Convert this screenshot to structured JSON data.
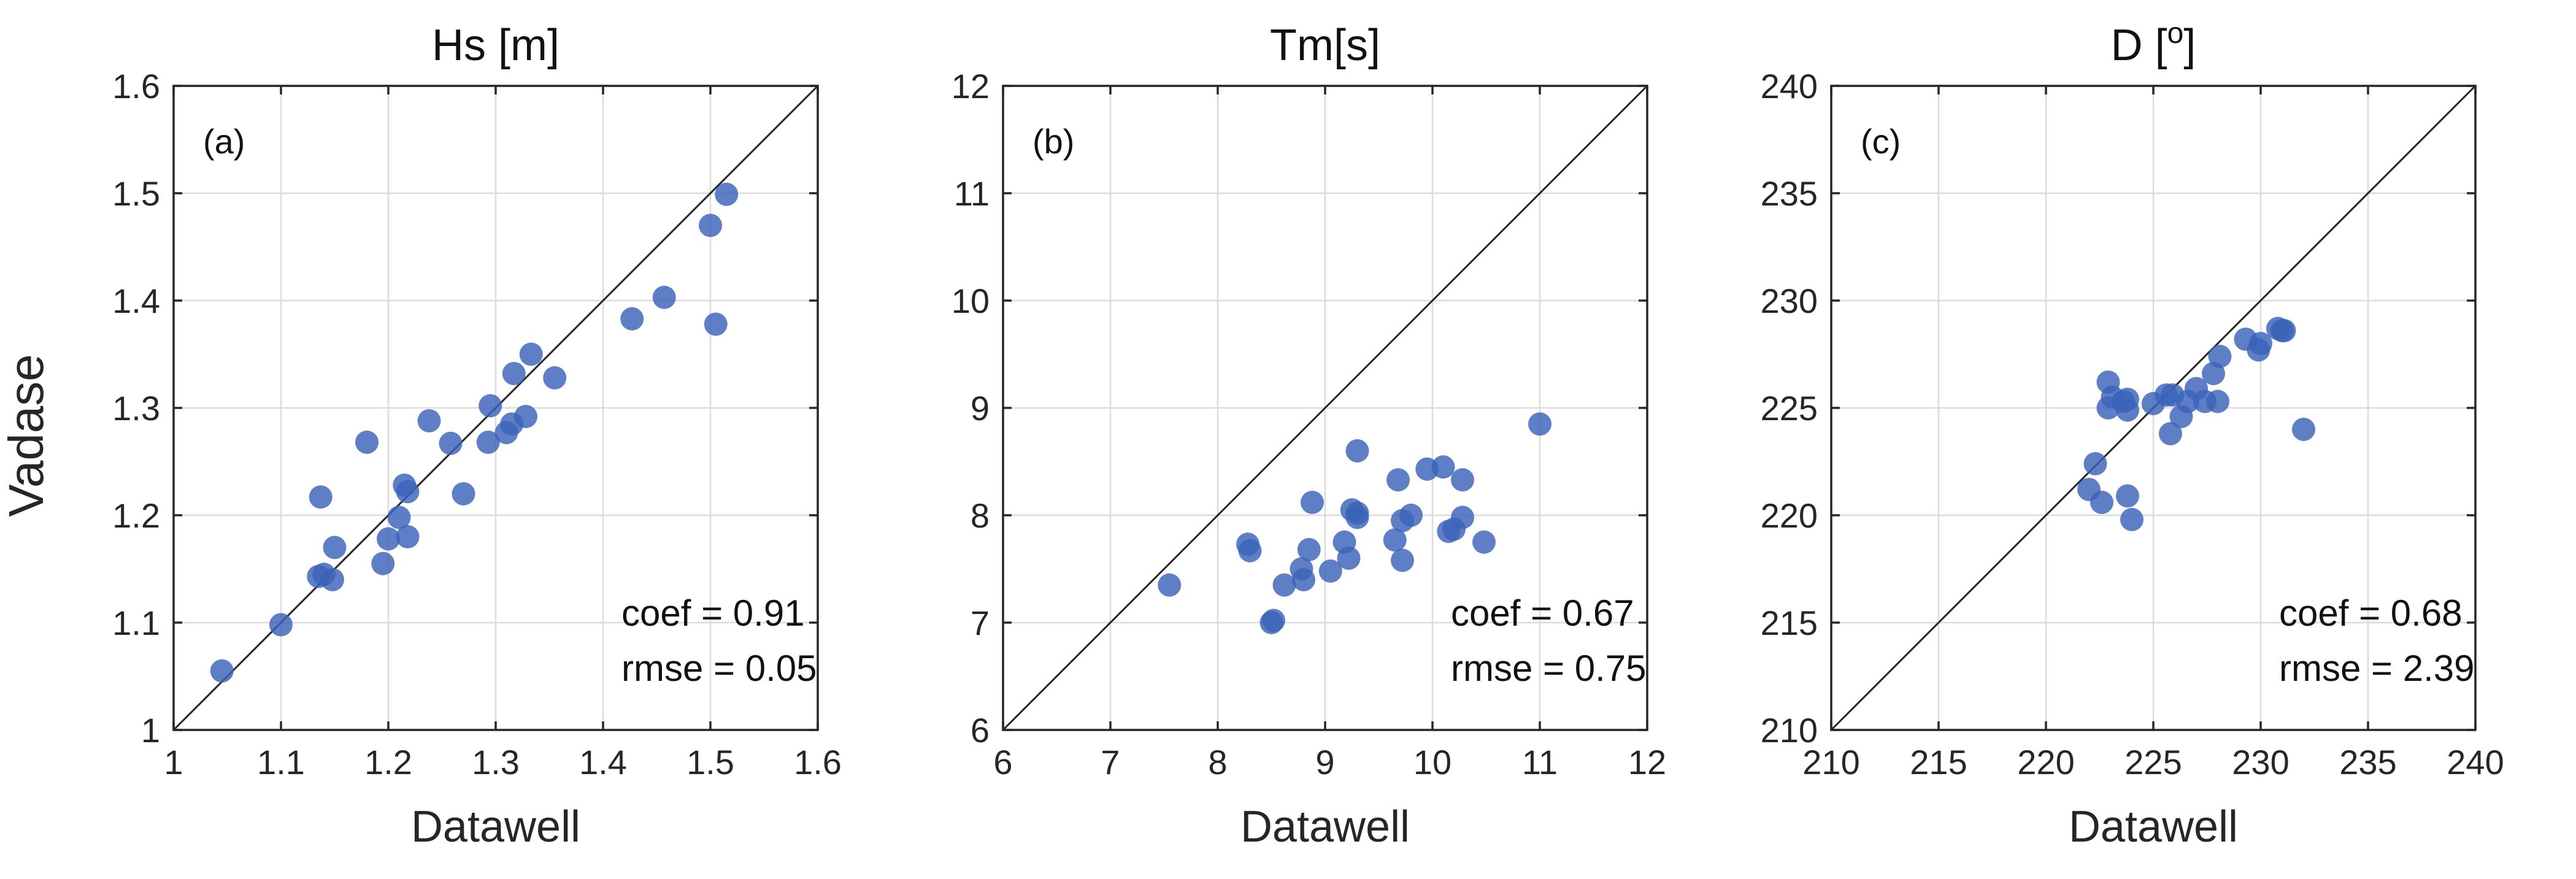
{
  "figure": {
    "ylabel": "Vadase",
    "accent_color": "#3a63b8"
  },
  "chart_data": [
    {
      "type": "scatter",
      "title": "Hs [m]",
      "panel_label": "(a)",
      "xlabel": "Datawell",
      "xlim": [
        1,
        1.6
      ],
      "ylim": [
        1,
        1.6
      ],
      "xticks": [
        "1",
        "1.1",
        "1.2",
        "1.3",
        "1.4",
        "1.5",
        "1.6"
      ],
      "yticks": [
        "1",
        "1.1",
        "1.2",
        "1.3",
        "1.4",
        "1.5",
        "1.6"
      ],
      "tick_values": [
        1,
        1.1,
        1.2,
        1.3,
        1.4,
        1.5,
        1.6
      ],
      "identity_line": true,
      "coef_text": "coef  = 0.91",
      "rmse_text": "rmse = 0.05",
      "points": [
        [
          1.045,
          1.055
        ],
        [
          1.1,
          1.098
        ],
        [
          1.135,
          1.143
        ],
        [
          1.14,
          1.145
        ],
        [
          1.148,
          1.14
        ],
        [
          1.15,
          1.17
        ],
        [
          1.137,
          1.217
        ],
        [
          1.195,
          1.155
        ],
        [
          1.2,
          1.178
        ],
        [
          1.21,
          1.198
        ],
        [
          1.218,
          1.18
        ],
        [
          1.215,
          1.228
        ],
        [
          1.218,
          1.222
        ],
        [
          1.18,
          1.268
        ],
        [
          1.238,
          1.288
        ],
        [
          1.258,
          1.267
        ],
        [
          1.27,
          1.22
        ],
        [
          1.293,
          1.268
        ],
        [
          1.295,
          1.302
        ],
        [
          1.31,
          1.277
        ],
        [
          1.315,
          1.285
        ],
        [
          1.328,
          1.292
        ],
        [
          1.317,
          1.332
        ],
        [
          1.333,
          1.35
        ],
        [
          1.355,
          1.328
        ],
        [
          1.427,
          1.383
        ],
        [
          1.457,
          1.403
        ],
        [
          1.5,
          1.47
        ],
        [
          1.515,
          1.499
        ],
        [
          1.505,
          1.378
        ]
      ]
    },
    {
      "type": "scatter",
      "title": "Tm[s]",
      "panel_label": "(b)",
      "xlabel": "Datawell",
      "xlim": [
        6,
        12
      ],
      "ylim": [
        6,
        12
      ],
      "xticks": [
        "6",
        "7",
        "8",
        "9",
        "10",
        "11",
        "12"
      ],
      "yticks": [
        "6",
        "7",
        "8",
        "9",
        "10",
        "11",
        "12"
      ],
      "tick_values": [
        6,
        7,
        8,
        9,
        10,
        11,
        12
      ],
      "identity_line": true,
      "coef_text": "coef  = 0.67",
      "rmse_text": "rmse = 0.75",
      "points": [
        [
          7.55,
          7.35
        ],
        [
          8.28,
          7.73
        ],
        [
          8.3,
          7.67
        ],
        [
          8.5,
          7.0
        ],
        [
          8.52,
          7.02
        ],
        [
          8.62,
          7.35
        ],
        [
          8.78,
          7.5
        ],
        [
          8.8,
          7.4
        ],
        [
          8.85,
          7.68
        ],
        [
          8.88,
          8.12
        ],
        [
          9.05,
          7.48
        ],
        [
          9.18,
          7.75
        ],
        [
          9.22,
          7.6
        ],
        [
          9.25,
          8.05
        ],
        [
          9.3,
          7.98
        ],
        [
          9.3,
          8.02
        ],
        [
          9.3,
          8.6
        ],
        [
          9.65,
          7.77
        ],
        [
          9.68,
          8.33
        ],
        [
          9.72,
          7.95
        ],
        [
          9.72,
          7.58
        ],
        [
          9.8,
          8.0
        ],
        [
          9.95,
          8.43
        ],
        [
          10.1,
          8.45
        ],
        [
          10.15,
          7.85
        ],
        [
          10.2,
          7.87
        ],
        [
          10.28,
          8.33
        ],
        [
          10.28,
          7.98
        ],
        [
          10.48,
          7.75
        ],
        [
          11.0,
          8.85
        ]
      ]
    },
    {
      "type": "scatter",
      "title": "D [o]",
      "title_main": "D [",
      "title_superscript": "o",
      "title_close": "]",
      "panel_label": "(c)",
      "xlabel": "Datawell",
      "xlim": [
        210,
        240
      ],
      "ylim": [
        210,
        240
      ],
      "xticks": [
        "210",
        "215",
        "220",
        "225",
        "230",
        "235",
        "240"
      ],
      "yticks": [
        "210",
        "215",
        "220",
        "225",
        "230",
        "235",
        "240"
      ],
      "tick_values": [
        210,
        215,
        220,
        225,
        230,
        235,
        240
      ],
      "identity_line": true,
      "coef_text": "coef  = 0.68",
      "rmse_text": "rmse = 2.39",
      "points": [
        [
          222.0,
          221.2
        ],
        [
          222.3,
          222.4
        ],
        [
          222.6,
          220.6
        ],
        [
          222.9,
          226.2
        ],
        [
          222.9,
          225.0
        ],
        [
          223.1,
          225.5
        ],
        [
          223.6,
          225.3
        ],
        [
          223.8,
          224.9
        ],
        [
          223.8,
          225.4
        ],
        [
          223.8,
          220.9
        ],
        [
          224.0,
          219.8
        ],
        [
          225.0,
          225.2
        ],
        [
          225.6,
          225.6
        ],
        [
          225.8,
          223.8
        ],
        [
          225.9,
          225.6
        ],
        [
          226.3,
          224.6
        ],
        [
          226.6,
          225.3
        ],
        [
          227.0,
          225.9
        ],
        [
          227.4,
          225.3
        ],
        [
          227.8,
          226.6
        ],
        [
          228.0,
          225.3
        ],
        [
          228.1,
          227.4
        ],
        [
          229.3,
          228.2
        ],
        [
          229.9,
          227.7
        ],
        [
          230.0,
          228.0
        ],
        [
          230.8,
          228.7
        ],
        [
          231.0,
          228.6
        ],
        [
          231.1,
          228.6
        ],
        [
          232.0,
          224.0
        ]
      ]
    }
  ]
}
